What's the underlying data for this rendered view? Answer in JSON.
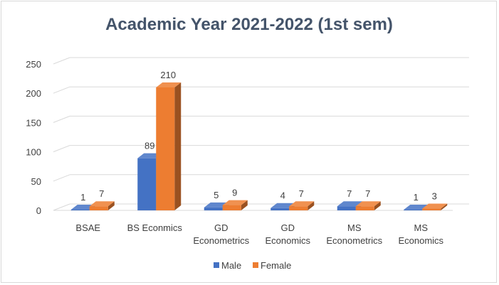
{
  "chart_data": {
    "type": "bar",
    "title": "Academic Year 2021-2022 (1st sem)",
    "xlabel": "",
    "ylabel": "",
    "categories": [
      [
        "BSAE"
      ],
      [
        "BS Econmics"
      ],
      [
        "GD",
        "Econometrics"
      ],
      [
        "GD",
        "Economics"
      ],
      [
        "MS",
        "Econometrics"
      ],
      [
        "MS",
        "Economics"
      ]
    ],
    "series": [
      {
        "name": "Male",
        "values": [
          1,
          89,
          5,
          4,
          7,
          1
        ],
        "color": "#4472c4"
      },
      {
        "name": "Female",
        "values": [
          7,
          210,
          9,
          7,
          7,
          3
        ],
        "color": "#ed7d31"
      }
    ],
    "ylim": [
      0,
      250
    ],
    "yticks": [
      0,
      50,
      100,
      150,
      200,
      250
    ],
    "grid": true,
    "legend": "bottom",
    "style": "3d-clustered-column"
  }
}
